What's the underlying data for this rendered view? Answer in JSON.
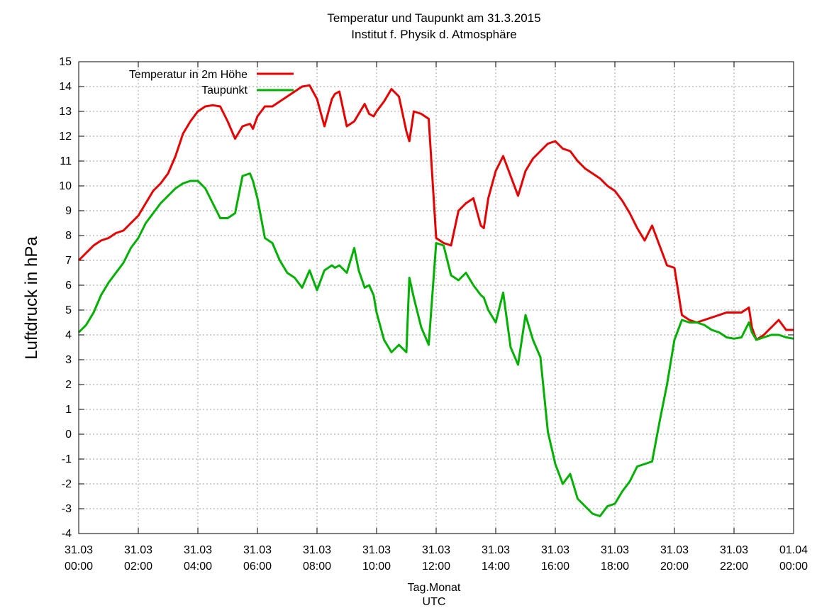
{
  "chart_data": {
    "type": "line",
    "title": "Temperatur und Taupunkt am 31.3.2015",
    "subtitle": "Institut f. Physik d. Atmosphäre",
    "ylabel": "Luftdruck in hPa",
    "xlabel": "Tag.Monat",
    "xlabel2": "UTC",
    "ylim": [
      -4,
      15
    ],
    "xlim": [
      0,
      24
    ],
    "y_ticks": [
      "15",
      "14",
      "13",
      "12",
      "11",
      "10",
      "9",
      "8",
      "7",
      "6",
      "5",
      "4",
      "3",
      "2",
      "1",
      "0",
      "-1",
      "-2",
      "-3",
      "-4"
    ],
    "x_ticks": [
      {
        "date": "31.03",
        "time": "00:00"
      },
      {
        "date": "31.03",
        "time": "02:00"
      },
      {
        "date": "31.03",
        "time": "04:00"
      },
      {
        "date": "31.03",
        "time": "06:00"
      },
      {
        "date": "31.03",
        "time": "08:00"
      },
      {
        "date": "31.03",
        "time": "10:00"
      },
      {
        "date": "31.03",
        "time": "12:00"
      },
      {
        "date": "31.03",
        "time": "14:00"
      },
      {
        "date": "31.03",
        "time": "16:00"
      },
      {
        "date": "31.03",
        "time": "18:00"
      },
      {
        "date": "31.03",
        "time": "20:00"
      },
      {
        "date": "31.03",
        "time": "22:00"
      },
      {
        "date": "01.04",
        "time": "00:00"
      }
    ],
    "grid": true,
    "legend_position": "top-left",
    "series": [
      {
        "name": "Temperatur in 2m Höhe",
        "color": "#e60000",
        "x": [
          0,
          0.25,
          0.5,
          0.75,
          1,
          1.25,
          1.5,
          1.75,
          2,
          2.25,
          2.5,
          2.75,
          3,
          3.25,
          3.5,
          3.75,
          4,
          4.25,
          4.5,
          4.75,
          5,
          5.25,
          5.5,
          5.75,
          5.85,
          6,
          6.25,
          6.5,
          6.75,
          7,
          7.25,
          7.5,
          7.75,
          8,
          8.25,
          8.5,
          8.6,
          8.75,
          9,
          9.25,
          9.4,
          9.6,
          9.75,
          9.9,
          10,
          10.25,
          10.5,
          10.75,
          11,
          11.1,
          11.25,
          11.5,
          11.75,
          12,
          12.25,
          12.5,
          12.75,
          13,
          13.25,
          13.5,
          13.6,
          13.75,
          14,
          14.25,
          14.5,
          14.75,
          15,
          15.25,
          15.5,
          15.75,
          16,
          16.25,
          16.5,
          16.75,
          17,
          17.25,
          17.5,
          17.75,
          18,
          18.25,
          18.5,
          18.75,
          19,
          19.25,
          19.5,
          19.75,
          20,
          20.25,
          20.5,
          20.75,
          21,
          21.25,
          21.5,
          21.75,
          22,
          22.25,
          22.5,
          22.6,
          22.75,
          23,
          23.25,
          23.5,
          23.75,
          24
        ],
        "values": [
          7.0,
          7.3,
          7.6,
          7.8,
          7.9,
          8.1,
          8.2,
          8.5,
          8.8,
          9.3,
          9.8,
          10.1,
          10.5,
          11.2,
          12.1,
          12.6,
          13.0,
          13.2,
          13.25,
          13.2,
          12.6,
          11.9,
          12.4,
          12.5,
          12.3,
          12.8,
          13.2,
          13.2,
          13.4,
          13.6,
          13.8,
          14.0,
          14.05,
          13.5,
          12.4,
          13.5,
          13.7,
          13.8,
          12.4,
          12.6,
          12.9,
          13.3,
          12.9,
          12.8,
          13.0,
          13.4,
          13.9,
          13.6,
          12.2,
          11.8,
          13.0,
          12.9,
          12.7,
          7.9,
          7.7,
          7.6,
          9.0,
          9.3,
          9.5,
          8.4,
          8.3,
          9.5,
          10.6,
          11.2,
          10.4,
          9.6,
          10.6,
          11.1,
          11.4,
          11.7,
          11.8,
          11.5,
          11.4,
          11.0,
          10.7,
          10.5,
          10.3,
          10.0,
          9.8,
          9.4,
          8.9,
          8.3,
          7.8,
          8.4,
          7.6,
          6.8,
          6.7,
          4.8,
          4.6,
          4.5,
          4.6,
          4.7,
          4.8,
          4.9,
          4.9,
          4.9,
          5.1,
          4.3,
          3.8,
          4.0,
          4.3,
          4.6,
          4.2,
          4.2
        ]
      },
      {
        "name": "Taupunkt",
        "color": "#00b000",
        "x": [
          0,
          0.25,
          0.5,
          0.75,
          1,
          1.25,
          1.5,
          1.75,
          2,
          2.25,
          2.5,
          2.75,
          3,
          3.25,
          3.5,
          3.75,
          4,
          4.25,
          4.5,
          4.75,
          5,
          5.25,
          5.5,
          5.75,
          5.85,
          6,
          6.25,
          6.5,
          6.75,
          7,
          7.25,
          7.5,
          7.75,
          8,
          8.25,
          8.5,
          8.6,
          8.75,
          9,
          9.25,
          9.4,
          9.6,
          9.75,
          9.9,
          10,
          10.25,
          10.5,
          10.75,
          11,
          11.1,
          11.25,
          11.5,
          11.75,
          12,
          12.25,
          12.5,
          12.75,
          13,
          13.25,
          13.5,
          13.6,
          13.75,
          14,
          14.25,
          14.5,
          14.75,
          15,
          15.25,
          15.5,
          15.75,
          16,
          16.25,
          16.5,
          16.75,
          17,
          17.25,
          17.5,
          17.75,
          18,
          18.25,
          18.5,
          18.75,
          19,
          19.25,
          19.5,
          19.75,
          20,
          20.25,
          20.5,
          20.75,
          21,
          21.25,
          21.5,
          21.75,
          22,
          22.25,
          22.5,
          22.6,
          22.75,
          23,
          23.25,
          23.5,
          23.75,
          24
        ],
        "values": [
          4.1,
          4.4,
          4.9,
          5.6,
          6.1,
          6.5,
          6.9,
          7.5,
          7.9,
          8.5,
          8.9,
          9.3,
          9.6,
          9.9,
          10.1,
          10.2,
          10.2,
          9.9,
          9.3,
          8.7,
          8.7,
          8.9,
          10.4,
          10.5,
          10.2,
          9.5,
          7.9,
          7.7,
          7.0,
          6.5,
          6.3,
          5.9,
          6.6,
          5.8,
          6.6,
          6.8,
          6.7,
          6.8,
          6.5,
          7.5,
          6.6,
          5.9,
          6.0,
          5.6,
          4.9,
          3.8,
          3.3,
          3.6,
          3.3,
          6.3,
          5.5,
          4.3,
          3.6,
          7.7,
          7.6,
          6.4,
          6.2,
          6.5,
          6.0,
          5.6,
          5.5,
          5.0,
          4.5,
          5.7,
          3.5,
          2.8,
          4.8,
          3.8,
          3.1,
          0.1,
          -1.2,
          -2.0,
          -1.6,
          -2.6,
          -2.9,
          -3.2,
          -3.3,
          -2.9,
          -2.8,
          -2.3,
          -1.9,
          -1.3,
          -1.2,
          -1.1,
          0.5,
          2.0,
          3.8,
          4.6,
          4.5,
          4.5,
          4.4,
          4.2,
          4.1,
          3.9,
          3.85,
          3.9,
          4.5,
          4.1,
          3.8,
          3.9,
          4.0,
          4.0,
          3.9,
          3.85
        ]
      }
    ]
  }
}
